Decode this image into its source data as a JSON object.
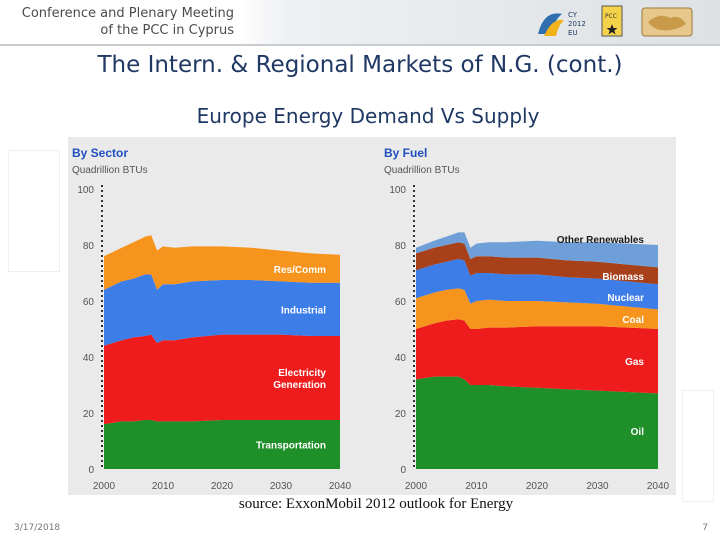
{
  "header": {
    "line1": "Conference and Plenary Meeting",
    "line2": "of the PCC in Cyprus",
    "cy_logo_text": "CY 2012 EU",
    "pcc_logo_text": "PCC"
  },
  "slide": {
    "title": "The Intern. & Regional Markets of N.G. (cont.)",
    "subtitle": "Europe Energy Demand Vs Supply",
    "source": "source: ExxonMobil 2012 outlook for Energy"
  },
  "footer": {
    "date": "3/17/2018",
    "page": "7"
  },
  "colors": {
    "transportation": "#1f8f2a",
    "electricity": "#ee1c1c",
    "industrial": "#3d7de8",
    "rescomm": "#f7941d",
    "oil": "#1f8f2a",
    "gas": "#ee1c1c",
    "coal": "#f7941d",
    "nuclear": "#3d7de8",
    "biomass": "#a8401a",
    "other_renewables": "#6f9fd8",
    "panel_title": "#1f4fbf"
  },
  "chart_data": [
    {
      "type": "area",
      "title": "By Sector",
      "subtitle": "Quadrillion BTUs",
      "x": [
        2000,
        2003,
        2005,
        2007,
        2008,
        2009,
        2010,
        2012,
        2015,
        2020,
        2025,
        2030,
        2035,
        2040
      ],
      "xticks": [
        "2000",
        "2010",
        "2020",
        "2030",
        "2040"
      ],
      "yticks": [
        "0",
        "20",
        "40",
        "60",
        "80",
        "100"
      ],
      "ylim": [
        0,
        100
      ],
      "series": [
        {
          "name": "Transportation",
          "values": [
            16,
            17,
            17,
            17.5,
            17.5,
            17,
            17,
            17,
            17,
            17.5,
            17.5,
            17.5,
            17.5,
            17.5
          ]
        },
        {
          "name": "Electricity Generation",
          "values": [
            28,
            29,
            30,
            30,
            30.5,
            28,
            29,
            29,
            30,
            30.5,
            30.5,
            30.5,
            30,
            30
          ]
        },
        {
          "name": "Industrial",
          "values": [
            20,
            21,
            21,
            22,
            21.5,
            19,
            20,
            20,
            20,
            19.5,
            19.5,
            19,
            19,
            19
          ]
        },
        {
          "name": "Res/Comm",
          "values": [
            12,
            12,
            13,
            13.5,
            14,
            14,
            13.5,
            13,
            12.5,
            12,
            11.5,
            11,
            10.5,
            10
          ]
        }
      ]
    },
    {
      "type": "area",
      "title": "By Fuel",
      "subtitle": "Quadrillion BTUs",
      "x": [
        2000,
        2003,
        2005,
        2007,
        2008,
        2009,
        2010,
        2012,
        2015,
        2020,
        2025,
        2030,
        2035,
        2040
      ],
      "xticks": [
        "2000",
        "2010",
        "2020",
        "2030",
        "2040"
      ],
      "yticks": [
        "0",
        "20",
        "40",
        "60",
        "80",
        "100"
      ],
      "ylim": [
        0,
        100
      ],
      "series": [
        {
          "name": "Oil",
          "values": [
            32,
            33,
            33,
            33,
            32,
            30,
            30,
            30,
            29.5,
            29,
            28.5,
            28,
            27.5,
            27
          ]
        },
        {
          "name": "Gas",
          "values": [
            18,
            19,
            20,
            20.5,
            21,
            20,
            20,
            20.5,
            21,
            22,
            22.5,
            23,
            23,
            23
          ]
        },
        {
          "name": "Coal",
          "values": [
            11,
            11,
            11,
            11,
            11,
            9,
            10,
            10,
            9.5,
            9,
            8.5,
            8,
            7.5,
            7
          ]
        },
        {
          "name": "Nuclear",
          "values": [
            10,
            10,
            10,
            10.5,
            10.5,
            10,
            10,
            9.5,
            9.5,
            9.5,
            9,
            9,
            9,
            9
          ]
        },
        {
          "name": "Biomass",
          "values": [
            6,
            6,
            6,
            6,
            6,
            6,
            6,
            6,
            6,
            6,
            6,
            6,
            6,
            6
          ]
        },
        {
          "name": "Other Renewables",
          "values": [
            2,
            2.5,
            3,
            3.5,
            4,
            4,
            4.5,
            5,
            5.5,
            6,
            6.5,
            7,
            7.5,
            8
          ]
        }
      ]
    }
  ]
}
